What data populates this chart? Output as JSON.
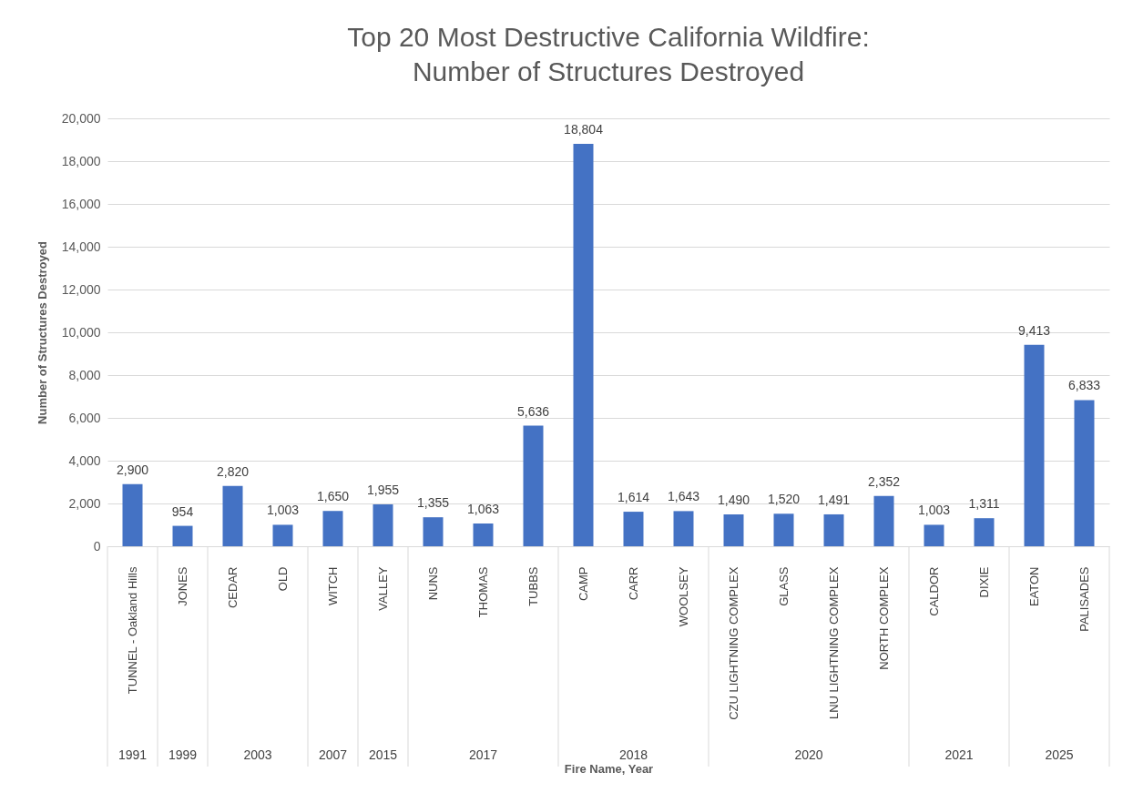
{
  "chart_data": {
    "type": "bar",
    "title": "Top 20 Most Destructive California Wildfire:\nNumber of Structures Destroyed",
    "xlabel": "Fire Name, Year",
    "ylabel": "Number of Structures Destroyed",
    "categories": [
      "TUNNEL - Oakland Hills",
      "JONES",
      "CEDAR",
      "OLD",
      "WITCH",
      "VALLEY",
      "NUNS",
      "THOMAS",
      "TUBBS",
      "CAMP",
      "CARR",
      "WOOLSEY",
      "CZU LIGHTNING COMPLEX",
      "GLASS",
      "LNU LIGHTNING COMPLEX",
      "NORTH COMPLEX",
      "CALDOR",
      "DIXIE",
      "EATON",
      "PALISADES"
    ],
    "values": [
      2900,
      954,
      2820,
      1003,
      1650,
      1955,
      1355,
      1063,
      5636,
      18804,
      1614,
      1643,
      1490,
      1520,
      1491,
      2352,
      1003,
      1311,
      9413,
      6833
    ],
    "value_labels": [
      "2,900",
      "954",
      "2,820",
      "1,003",
      "1,650",
      "1,955",
      "1,355",
      "1,063",
      "5,636",
      "18,804",
      "1,614",
      "1,643",
      "1,490",
      "1,520",
      "1,491",
      "2,352",
      "1,003",
      "1,311",
      "9,413",
      "6,833"
    ],
    "color": "#4472c4",
    "ylim": [
      0,
      20000
    ],
    "yticks": [
      0,
      {
        "value": 2000,
        "label": "2,000"
      },
      {
        "value": 4000,
        "label": "4,000"
      },
      {
        "value": 6000,
        "label": "6,000"
      },
      {
        "value": 8000,
        "label": "8,000"
      },
      {
        "value": 10000,
        "label": "10,000"
      },
      {
        "value": 12000,
        "label": "12,000"
      },
      {
        "value": 14000,
        "label": "14,000"
      },
      {
        "value": 16000,
        "label": "16,000"
      },
      {
        "value": 18000,
        "label": "18,000"
      },
      {
        "value": 20000,
        "label": "20,000"
      }
    ],
    "grid": "y",
    "annotations": [
      "1991",
      "1999",
      "2003",
      "2007",
      "2015",
      "2017",
      "2018",
      "2020",
      "2021",
      "2025"
    ]
  }
}
